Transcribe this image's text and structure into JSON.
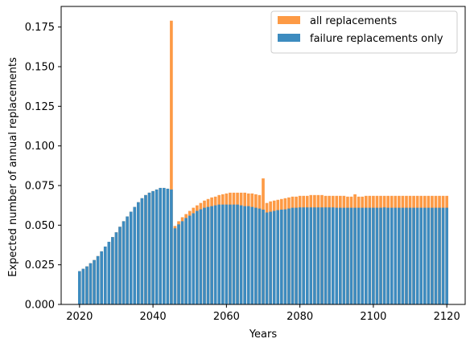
{
  "chart_data": {
    "type": "bar",
    "stacked_overlay": true,
    "xlabel": "Years",
    "ylabel": "Expected number of annual replacements",
    "xlim": [
      2015,
      2125
    ],
    "ylim": [
      0,
      0.188
    ],
    "xticks": [
      2020,
      2040,
      2060,
      2080,
      2100,
      2120
    ],
    "yticks": [
      "0.000",
      "0.025",
      "0.050",
      "0.075",
      "0.100",
      "0.125",
      "0.150",
      "0.175"
    ],
    "ytick_values": [
      0,
      0.025,
      0.05,
      0.075,
      0.1,
      0.125,
      0.15,
      0.175
    ],
    "legend_position": "upper-right",
    "x_start": 2020,
    "x_end": 2120,
    "series": [
      {
        "name": "all replacements",
        "color": "#fd9a45",
        "values": [
          0.021,
          0.0225,
          0.024,
          0.026,
          0.028,
          0.0305,
          0.0335,
          0.0365,
          0.0395,
          0.0425,
          0.0455,
          0.049,
          0.0525,
          0.0555,
          0.0585,
          0.0615,
          0.0645,
          0.067,
          0.069,
          0.0705,
          0.0715,
          0.0725,
          0.0735,
          0.0735,
          0.073,
          0.179,
          0.0495,
          0.0525,
          0.055,
          0.057,
          0.059,
          0.061,
          0.0625,
          0.064,
          0.0655,
          0.0665,
          0.0675,
          0.068,
          0.069,
          0.0695,
          0.07,
          0.0705,
          0.0705,
          0.0705,
          0.0705,
          0.0705,
          0.07,
          0.07,
          0.0695,
          0.069,
          0.0795,
          0.064,
          0.065,
          0.0655,
          0.066,
          0.0665,
          0.067,
          0.0675,
          0.068,
          0.068,
          0.0685,
          0.0685,
          0.0685,
          0.069,
          0.069,
          0.069,
          0.069,
          0.0685,
          0.0685,
          0.0685,
          0.0685,
          0.0685,
          0.0685,
          0.068,
          0.068,
          0.0695,
          0.068,
          0.068,
          0.0685,
          0.0685,
          0.0685,
          0.0685,
          0.0685,
          0.0685,
          0.0685,
          0.0685,
          0.0685,
          0.0685,
          0.0685,
          0.0685,
          0.0685,
          0.0685,
          0.0685,
          0.0685,
          0.0685,
          0.0685,
          0.0685,
          0.0685,
          0.0685,
          0.0685,
          0.0685
        ]
      },
      {
        "name": "failure replacements only",
        "color": "#3d8bbf",
        "values": [
          0.021,
          0.0225,
          0.024,
          0.026,
          0.028,
          0.0305,
          0.0335,
          0.0365,
          0.0395,
          0.0425,
          0.0455,
          0.049,
          0.0525,
          0.0555,
          0.0585,
          0.0615,
          0.0645,
          0.067,
          0.069,
          0.0705,
          0.0715,
          0.0725,
          0.0735,
          0.0735,
          0.073,
          0.0725,
          0.048,
          0.0505,
          0.0525,
          0.0545,
          0.056,
          0.0575,
          0.059,
          0.06,
          0.061,
          0.0615,
          0.062,
          0.0625,
          0.063,
          0.063,
          0.063,
          0.063,
          0.063,
          0.063,
          0.0625,
          0.062,
          0.062,
          0.0615,
          0.061,
          0.0605,
          0.0598,
          0.058,
          0.0585,
          0.059,
          0.0595,
          0.0598,
          0.06,
          0.0605,
          0.061,
          0.061,
          0.0612,
          0.0612,
          0.0612,
          0.0612,
          0.0612,
          0.0612,
          0.0612,
          0.0612,
          0.0612,
          0.0612,
          0.061,
          0.061,
          0.061,
          0.061,
          0.061,
          0.061,
          0.061,
          0.061,
          0.061,
          0.061,
          0.061,
          0.061,
          0.061,
          0.0612,
          0.061,
          0.061,
          0.061,
          0.061,
          0.061,
          0.061,
          0.061,
          0.061,
          0.061,
          0.061,
          0.061,
          0.061,
          0.061,
          0.061,
          0.061,
          0.061,
          0.061
        ]
      }
    ]
  }
}
